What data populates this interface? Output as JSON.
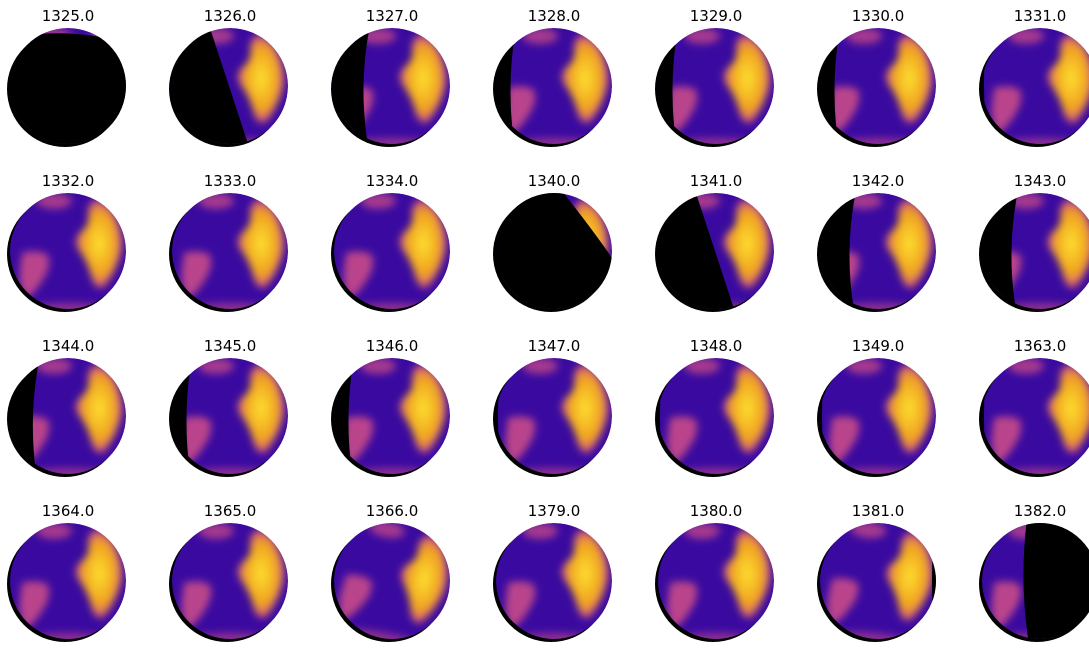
{
  "colors": {
    "ocean": "#3a0aa0",
    "ocean_deep": "#2a0690",
    "land_warm": "#f0a020",
    "land_hot": "#fde030",
    "land_mid": "#c84a88",
    "night": "#000000",
    "background": "#ffffff"
  },
  "colormap": "plasma",
  "panels": [
    {
      "title": "1325.0",
      "phase": "top-sliver",
      "rotation": 0
    },
    {
      "title": "1326.0",
      "phase": "right-crescent-wide",
      "rotation": 0
    },
    {
      "title": "1327.0",
      "phase": "right-half",
      "rotation": 0
    },
    {
      "title": "1328.0",
      "phase": "left-shadow-small",
      "rotation": 0
    },
    {
      "title": "1329.0",
      "phase": "left-shadow-small",
      "rotation": 0
    },
    {
      "title": "1330.0",
      "phase": "left-shadow-small",
      "rotation": 0
    },
    {
      "title": "1331.0",
      "phase": "left-shadow-thin",
      "rotation": 0
    },
    {
      "title": "1332.0",
      "phase": "full",
      "rotation": 0
    },
    {
      "title": "1333.0",
      "phase": "full",
      "rotation": 0
    },
    {
      "title": "1334.0",
      "phase": "full",
      "rotation": 0
    },
    {
      "title": "1340.0",
      "phase": "top-right-sliver",
      "rotation": 0
    },
    {
      "title": "1341.0",
      "phase": "right-crescent-wide",
      "rotation": 0
    },
    {
      "title": "1342.0",
      "phase": "right-half",
      "rotation": 0
    },
    {
      "title": "1343.0",
      "phase": "right-half",
      "rotation": 0
    },
    {
      "title": "1344.0",
      "phase": "left-shadow-medium",
      "rotation": 0
    },
    {
      "title": "1345.0",
      "phase": "left-shadow-small",
      "rotation": 0
    },
    {
      "title": "1346.0",
      "phase": "left-shadow-small",
      "rotation": 0
    },
    {
      "title": "1347.0",
      "phase": "left-shadow-thin",
      "rotation": 0
    },
    {
      "title": "1348.0",
      "phase": "left-shadow-thin",
      "rotation": 0
    },
    {
      "title": "1349.0",
      "phase": "left-shadow-thin",
      "rotation": 0
    },
    {
      "title": "1363.0",
      "phase": "left-shadow-thin",
      "rotation": 0
    },
    {
      "title": "1364.0",
      "phase": "full",
      "rotation": 0
    },
    {
      "title": "1365.0",
      "phase": "full",
      "rotation": 0
    },
    {
      "title": "1366.0",
      "phase": "full",
      "rotation": 10
    },
    {
      "title": "1379.0",
      "phase": "full",
      "rotation": 0
    },
    {
      "title": "1380.0",
      "phase": "full",
      "rotation": 0
    },
    {
      "title": "1381.0",
      "phase": "full-right-shadow",
      "rotation": 5
    },
    {
      "title": "1382.0",
      "phase": "left-crescent",
      "rotation": 0
    }
  ]
}
